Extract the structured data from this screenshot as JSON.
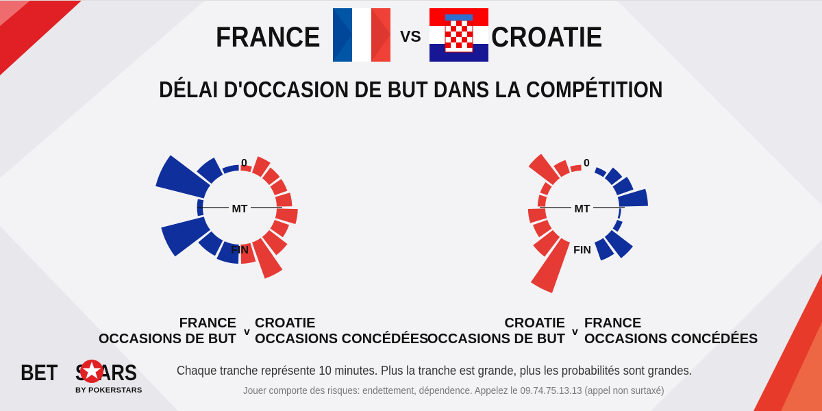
{
  "header": {
    "team_left": "FRANCE",
    "vs": "VS",
    "team_right": "CROATIE",
    "title": "DÉLAI D'OCCASION DE BUT DANS LA COMPÉTITION"
  },
  "colors": {
    "blue": "#0f2f9c",
    "red": "#e63a35",
    "france_flag": [
      "#0055a4",
      "#ffffff",
      "#ef4135"
    ],
    "croatia_flag": [
      "#ff0000",
      "#ffffff",
      "#171796"
    ]
  },
  "chart_data": [
    {
      "type": "radial-bar",
      "labels": {
        "top": "0",
        "middle": "MT",
        "bottom": "FIN"
      },
      "caption": {
        "left_line1": "FRANCE",
        "left_line2": "OCCASIONS DE BUT",
        "sep": "v",
        "right_line1": "CROATIE",
        "right_line2": "OCCASIONS CONCÉDÉES"
      },
      "series": [
        {
          "name": "FRANCE OCCASIONS DE BUT",
          "side": "left",
          "color": "#0f2f9c",
          "values": [
            0.3,
            1.0,
            2.6,
            0.3,
            2.3,
            0.9,
            1.0
          ]
        },
        {
          "name": "CROATIE OCCASIONS CONCÉDÉES",
          "side": "right",
          "color": "#e63a35",
          "values": [
            0.3,
            0.9,
            0.7,
            0.7,
            0.8,
            1.1,
            0.8,
            1.2,
            2.0,
            1.0
          ]
        }
      ]
    },
    {
      "type": "radial-bar",
      "labels": {
        "top": "0",
        "middle": "MT",
        "bottom": "FIN"
      },
      "caption": {
        "left_line1": "CROATIE",
        "left_line2": "OCCASIONS DE BUT",
        "sep": "v",
        "right_line1": "FRANCE",
        "right_line2": "OCCASIONS CONCÉDÉES"
      },
      "series": [
        {
          "name": "CROATIE OCCASIONS DE BUT",
          "side": "left",
          "color": "#e63a35",
          "values": [
            0.3,
            0.7,
            1.6,
            0.4,
            0.4,
            0.9,
            0.8,
            1.3,
            2.8,
            0.0
          ]
        },
        {
          "name": "FRANCE OCCASIONS CONCÉDÉES",
          "side": "right",
          "color": "#0f2f9c",
          "values": [
            0.0,
            0.3,
            0.7,
            0.9,
            1.5,
            0.1,
            0.3,
            1.4,
            1.0,
            0.0
          ]
        }
      ]
    }
  ],
  "footer": {
    "note": "Chaque tranche représente 10 minutes. Plus la tranche est grande, plus les probabilités sont grandes.",
    "disclaimer": "Jouer comporte des risques: endettement, dépendence. Appelez le 09.74.75.13.13 (appel non surtaxé)",
    "logo_left": "BET",
    "logo_right": "STARS",
    "logo_sub": "BY POKERSTARS"
  }
}
